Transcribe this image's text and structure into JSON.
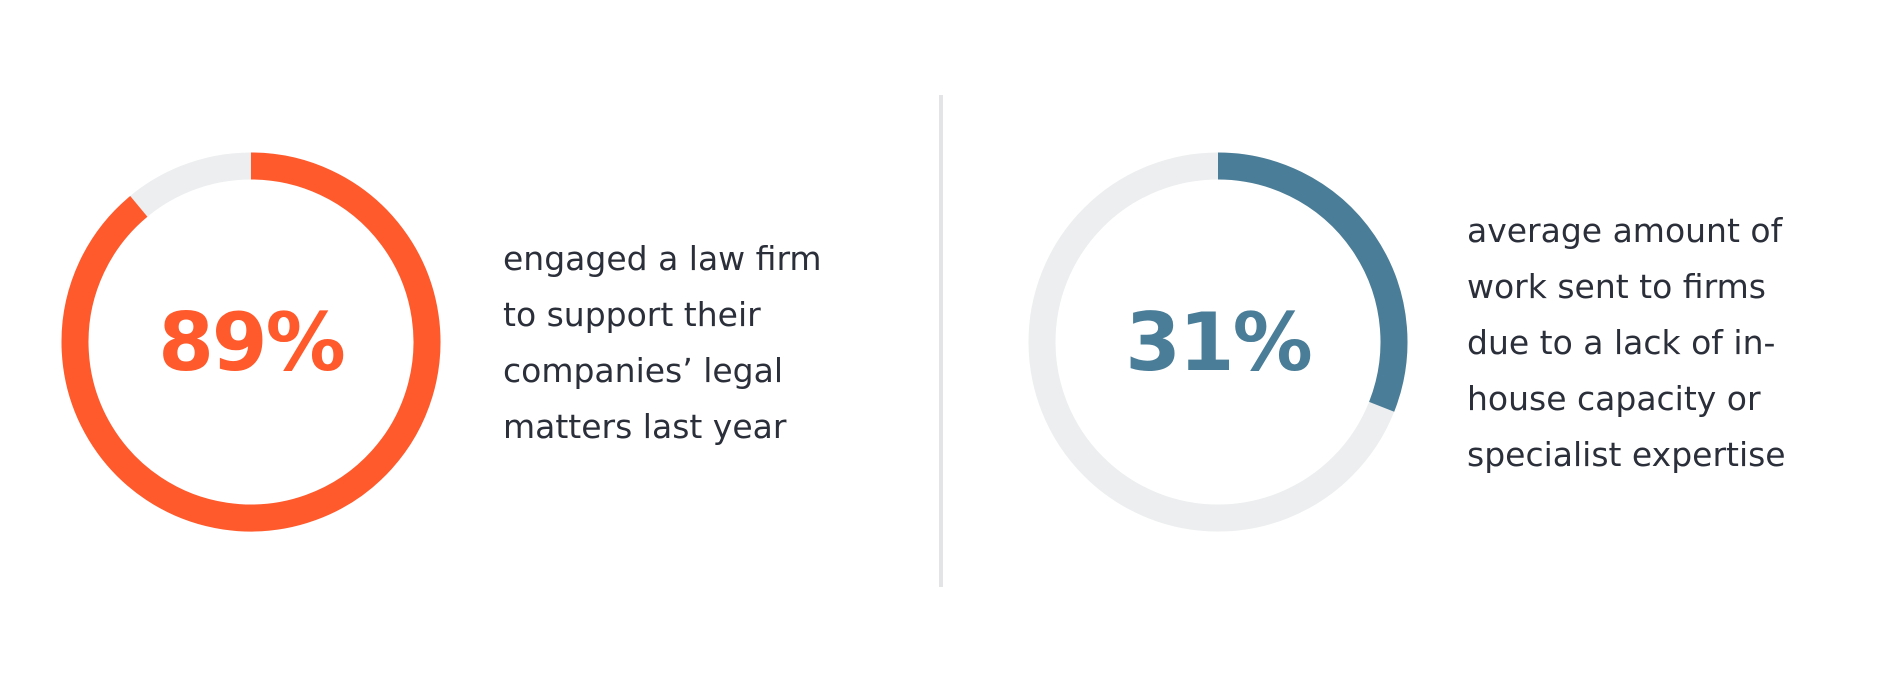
{
  "chart_data": [
    {
      "type": "pie",
      "subtype": "donut-progress",
      "value": 89,
      "max": 100,
      "value_label": "89%",
      "caption_lines": [
        "engaged a law firm",
        "to support their",
        "companies’ legal",
        "matters last year"
      ],
      "fill_color": "#ff5a2c",
      "track_color": "#eceeef",
      "value_text_color": "#ff5a2c"
    },
    {
      "type": "pie",
      "subtype": "donut-progress",
      "value": 31,
      "max": 100,
      "value_label": "31%",
      "caption_lines": [
        "average amount of",
        "work sent to firms",
        "due to a lack of in-",
        "house capacity or",
        "specialist expertise"
      ],
      "fill_color": "#4a7d98",
      "track_color": "#eceeef",
      "value_text_color": "#4a7d98"
    }
  ]
}
